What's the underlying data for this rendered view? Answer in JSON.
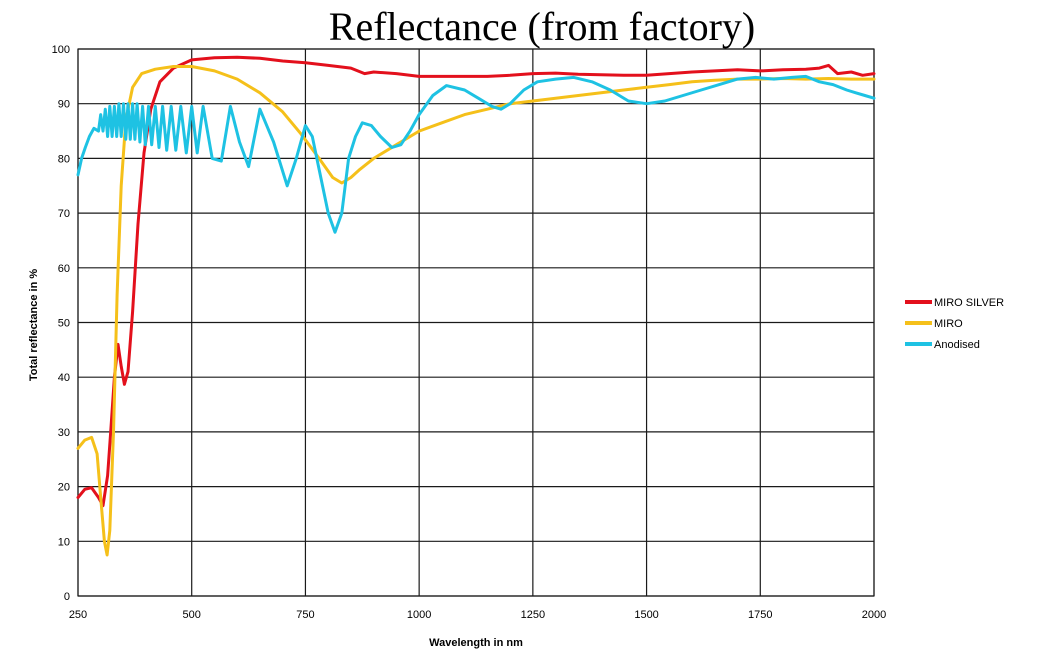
{
  "chart_data": {
    "type": "line",
    "title": "Reflectance (from factory)",
    "xlabel": "Wavelength in nm",
    "ylabel": "Total reflectance in %",
    "xlim": [
      250,
      2000
    ],
    "ylim": [
      0,
      100
    ],
    "x_ticks": [
      "250",
      "500",
      "750",
      "1000",
      "1250",
      "1500",
      "1750",
      "2000"
    ],
    "y_ticks": [
      "0",
      "10",
      "20",
      "30",
      "40",
      "50",
      "60",
      "70",
      "80",
      "90",
      "100"
    ],
    "grid": true,
    "legend_position": "right",
    "series": [
      {
        "name": "MIRO SILVER",
        "color": "#e3101c",
        "points": [
          [
            250,
            18
          ],
          [
            265,
            19.5
          ],
          [
            280,
            19.8
          ],
          [
            295,
            18
          ],
          [
            305,
            16.5
          ],
          [
            315,
            22
          ],
          [
            322,
            30
          ],
          [
            330,
            40
          ],
          [
            338,
            46
          ],
          [
            345,
            42
          ],
          [
            352,
            38.7
          ],
          [
            360,
            41
          ],
          [
            370,
            52
          ],
          [
            382,
            68
          ],
          [
            395,
            81
          ],
          [
            410,
            89
          ],
          [
            430,
            94
          ],
          [
            460,
            96.5
          ],
          [
            500,
            98
          ],
          [
            550,
            98.4
          ],
          [
            600,
            98.5
          ],
          [
            650,
            98.3
          ],
          [
            700,
            97.8
          ],
          [
            750,
            97.5
          ],
          [
            800,
            97
          ],
          [
            850,
            96.5
          ],
          [
            880,
            95.5
          ],
          [
            900,
            95.8
          ],
          [
            950,
            95.5
          ],
          [
            1000,
            95
          ],
          [
            1050,
            95
          ],
          [
            1100,
            95
          ],
          [
            1150,
            95
          ],
          [
            1200,
            95.2
          ],
          [
            1250,
            95.5
          ],
          [
            1300,
            95.6
          ],
          [
            1350,
            95.4
          ],
          [
            1400,
            95.3
          ],
          [
            1450,
            95.2
          ],
          [
            1500,
            95.2
          ],
          [
            1550,
            95.5
          ],
          [
            1600,
            95.8
          ],
          [
            1650,
            96
          ],
          [
            1700,
            96.2
          ],
          [
            1750,
            96
          ],
          [
            1800,
            96.2
          ],
          [
            1850,
            96.3
          ],
          [
            1880,
            96.5
          ],
          [
            1900,
            97
          ],
          [
            1920,
            95.5
          ],
          [
            1950,
            95.8
          ],
          [
            1975,
            95.2
          ],
          [
            2000,
            95.5
          ]
        ]
      },
      {
        "name": "MIRO",
        "color": "#f5c01a",
        "points": [
          [
            250,
            27
          ],
          [
            265,
            28.5
          ],
          [
            280,
            29
          ],
          [
            292,
            26
          ],
          [
            300,
            18
          ],
          [
            308,
            10
          ],
          [
            314,
            7.5
          ],
          [
            320,
            12
          ],
          [
            328,
            30
          ],
          [
            336,
            55
          ],
          [
            345,
            75
          ],
          [
            355,
            87
          ],
          [
            370,
            93
          ],
          [
            390,
            95.5
          ],
          [
            420,
            96.3
          ],
          [
            460,
            96.8
          ],
          [
            500,
            96.8
          ],
          [
            550,
            96
          ],
          [
            600,
            94.5
          ],
          [
            650,
            92
          ],
          [
            700,
            88.5
          ],
          [
            740,
            84.5
          ],
          [
            780,
            80
          ],
          [
            810,
            76.5
          ],
          [
            830,
            75.5
          ],
          [
            850,
            76.5
          ],
          [
            870,
            78
          ],
          [
            900,
            80
          ],
          [
            950,
            82.5
          ],
          [
            1000,
            85
          ],
          [
            1050,
            86.5
          ],
          [
            1100,
            88
          ],
          [
            1150,
            89
          ],
          [
            1200,
            90
          ],
          [
            1250,
            90.5
          ],
          [
            1300,
            91
          ],
          [
            1350,
            91.5
          ],
          [
            1400,
            92
          ],
          [
            1450,
            92.5
          ],
          [
            1500,
            93
          ],
          [
            1550,
            93.5
          ],
          [
            1600,
            94
          ],
          [
            1650,
            94.3
          ],
          [
            1700,
            94.5
          ],
          [
            1750,
            94.5
          ],
          [
            1800,
            94.6
          ],
          [
            1850,
            94.5
          ],
          [
            1900,
            94.6
          ],
          [
            1950,
            94.5
          ],
          [
            2000,
            94.5
          ]
        ]
      },
      {
        "name": "Anodised",
        "color": "#1ec2e3",
        "points": [
          [
            250,
            77
          ],
          [
            258,
            80
          ],
          [
            266,
            82
          ],
          [
            275,
            84
          ],
          [
            285,
            85.5
          ],
          [
            295,
            85
          ],
          [
            300,
            88
          ],
          [
            305,
            85
          ],
          [
            310,
            89
          ],
          [
            315,
            84
          ],
          [
            320,
            89.5
          ],
          [
            325,
            84
          ],
          [
            330,
            89.5
          ],
          [
            335,
            84
          ],
          [
            340,
            90
          ],
          [
            345,
            84
          ],
          [
            350,
            90
          ],
          [
            355,
            83.5
          ],
          [
            360,
            90
          ],
          [
            365,
            83.5
          ],
          [
            370,
            90
          ],
          [
            375,
            83.5
          ],
          [
            380,
            90
          ],
          [
            386,
            83
          ],
          [
            392,
            89.5
          ],
          [
            398,
            82.5
          ],
          [
            405,
            89.5
          ],
          [
            412,
            82.5
          ],
          [
            420,
            89.5
          ],
          [
            428,
            82
          ],
          [
            436,
            89.5
          ],
          [
            445,
            81.5
          ],
          [
            455,
            89.5
          ],
          [
            465,
            81.5
          ],
          [
            476,
            89.5
          ],
          [
            488,
            81
          ],
          [
            500,
            89.5
          ],
          [
            512,
            81
          ],
          [
            525,
            89.5
          ],
          [
            545,
            80
          ],
          [
            565,
            79.5
          ],
          [
            585,
            89.5
          ],
          [
            605,
            83
          ],
          [
            625,
            78.5
          ],
          [
            650,
            89
          ],
          [
            680,
            83
          ],
          [
            710,
            75
          ],
          [
            730,
            80
          ],
          [
            750,
            86
          ],
          [
            765,
            84
          ],
          [
            780,
            78
          ],
          [
            800,
            70
          ],
          [
            815,
            66.5
          ],
          [
            830,
            70
          ],
          [
            845,
            80
          ],
          [
            860,
            84
          ],
          [
            875,
            86.5
          ],
          [
            895,
            86
          ],
          [
            915,
            84
          ],
          [
            940,
            82
          ],
          [
            960,
            82.5
          ],
          [
            980,
            85
          ],
          [
            1000,
            88
          ],
          [
            1030,
            91.5
          ],
          [
            1060,
            93.3
          ],
          [
            1100,
            92.5
          ],
          [
            1130,
            91
          ],
          [
            1160,
            89.5
          ],
          [
            1180,
            89
          ],
          [
            1200,
            90
          ],
          [
            1230,
            92.5
          ],
          [
            1260,
            94
          ],
          [
            1300,
            94.5
          ],
          [
            1340,
            94.8
          ],
          [
            1380,
            94
          ],
          [
            1420,
            92.5
          ],
          [
            1460,
            90.5
          ],
          [
            1500,
            90
          ],
          [
            1540,
            90.5
          ],
          [
            1580,
            91.5
          ],
          [
            1620,
            92.5
          ],
          [
            1660,
            93.5
          ],
          [
            1700,
            94.5
          ],
          [
            1740,
            94.8
          ],
          [
            1780,
            94.5
          ],
          [
            1820,
            94.8
          ],
          [
            1850,
            95
          ],
          [
            1880,
            94
          ],
          [
            1910,
            93.5
          ],
          [
            1940,
            92.5
          ],
          [
            1960,
            92
          ],
          [
            1980,
            91.5
          ],
          [
            2000,
            91
          ]
        ]
      }
    ]
  }
}
